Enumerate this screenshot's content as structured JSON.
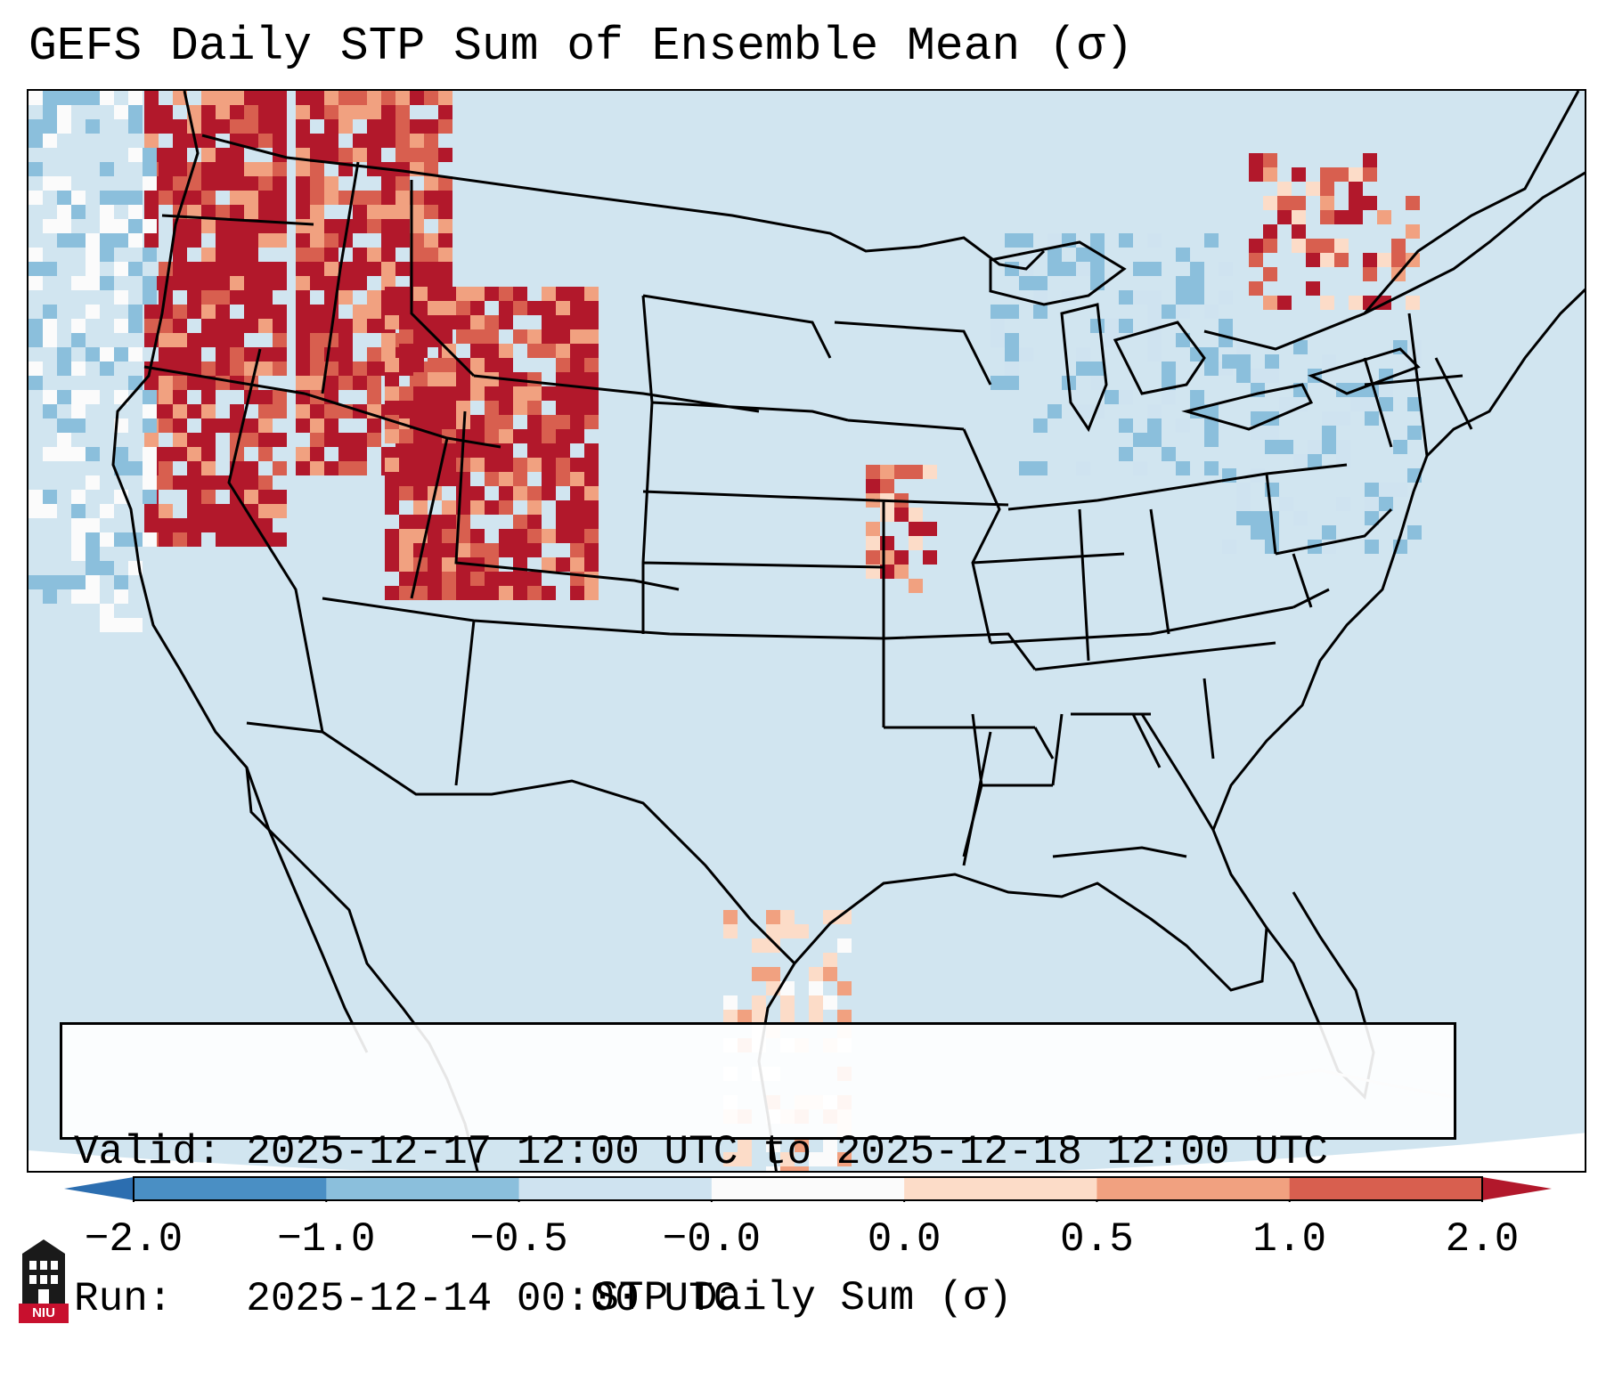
{
  "title": "GEFS Daily STP Sum of Ensemble Mean (σ)",
  "info": {
    "valid_line": "Valid: 2025-12-17 12:00 UTC to 2025-12-18 12:00 UTC",
    "run_line": "Run:   2025-12-14 00:00 UTC"
  },
  "colorbar": {
    "label": "STP Daily Sum (σ)",
    "ticks": [
      "−2.0",
      "−1.0",
      "−0.5",
      "−0.0",
      "0.0",
      "0.5",
      "1.0",
      "2.0"
    ],
    "colors": [
      "#4a8fc4",
      "#8bbfdc",
      "#cfe3f0",
      "#fbfbfb",
      "#fcdcc8",
      "#f1a180",
      "#d85f4f"
    ],
    "extend_low_color": "#2c6eb0",
    "extend_high_color": "#b2182b"
  },
  "map": {
    "background_color": "#d1e5f0",
    "field": [
      {
        "region": "pacific-northwest",
        "level": "high"
      },
      {
        "region": "northern-rockies",
        "level": "high"
      },
      {
        "region": "wyoming-colorado",
        "level": "high"
      },
      {
        "region": "iowa-missouri",
        "level": "moderate"
      },
      {
        "region": "texas-gulf-coast",
        "level": "low"
      },
      {
        "region": "great-lakes",
        "level": "negative"
      },
      {
        "region": "northeast",
        "level": "negative"
      },
      {
        "region": "quebec",
        "level": "moderate"
      }
    ]
  },
  "logo": {
    "text": "NIU",
    "name": "niu-logo"
  }
}
